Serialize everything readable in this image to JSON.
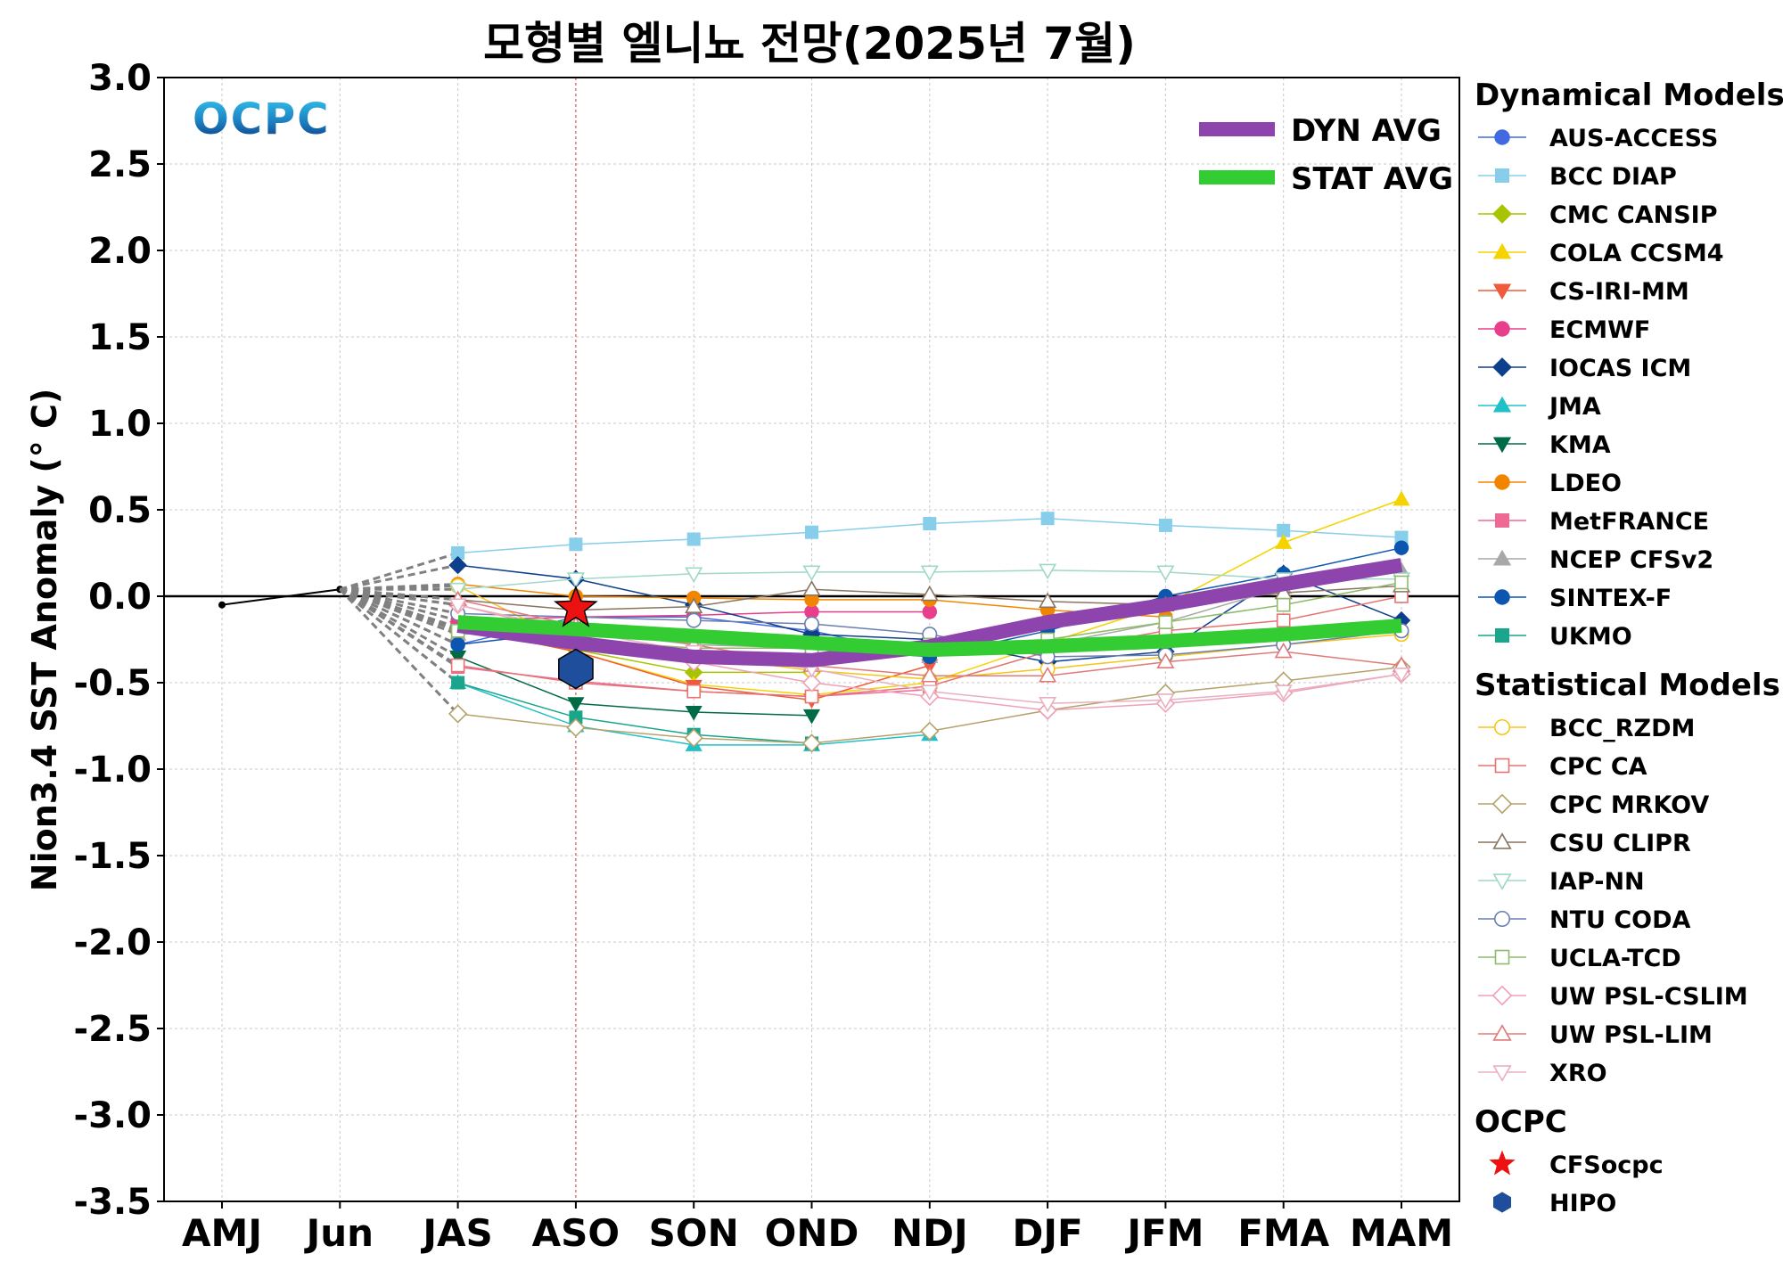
{
  "chart_data": {
    "type": "line",
    "title": "모형별 엘니뇨 전망(2025년 7월)",
    "ylabel": "Nion3.4 SST Anomaly (° C)",
    "xlabel": "",
    "categories": [
      "AMJ",
      "Jun",
      "JAS",
      "ASO",
      "SON",
      "OND",
      "NDJ",
      "DJF",
      "JFM",
      "FMA",
      "MAM"
    ],
    "ylim": [
      -3.5,
      3.0
    ],
    "yticks": [
      "3.0",
      "2.5",
      "2.0",
      "1.5",
      "1.0",
      "0.5",
      "0.0",
      "-0.5",
      "-1.0",
      "-1.5",
      "-2.0",
      "-2.5",
      "-3.0",
      "-3.5"
    ],
    "grid": true,
    "logo_text": "OCPC",
    "observed": {
      "values": [
        -0.05,
        0.04,
        null,
        null,
        null,
        null,
        null,
        null,
        null,
        null,
        null
      ],
      "color": "#000000"
    },
    "vline_category": "ASO",
    "averages": [
      {
        "name": "DYN AVG",
        "color": "#8e44ad",
        "values": [
          null,
          null,
          -0.17,
          -0.27,
          -0.35,
          -0.37,
          -0.29,
          -0.15,
          -0.05,
          0.07,
          0.18
        ]
      },
      {
        "name": "STAT AVG",
        "color": "#33cc33",
        "values": [
          null,
          null,
          -0.15,
          -0.19,
          -0.23,
          -0.27,
          -0.31,
          -0.29,
          -0.26,
          -0.22,
          -0.17
        ]
      }
    ],
    "legend_groups": [
      {
        "heading": "Dynamical Models",
        "series": [
          {
            "name": "AUS-ACCESS",
            "color": "#4169e1",
            "marker": "circle",
            "filled": true,
            "values": [
              null,
              null,
              -0.28,
              -0.12,
              -0.12,
              -0.2,
              -0.35,
              null,
              null,
              null,
              null
            ]
          },
          {
            "name": "BCC DIAP",
            "color": "#87ceeb",
            "marker": "square",
            "filled": true,
            "values": [
              null,
              null,
              0.25,
              0.3,
              0.33,
              0.37,
              0.42,
              0.45,
              0.41,
              0.38,
              0.34
            ]
          },
          {
            "name": "CMC CANSIP",
            "color": "#a8c400",
            "marker": "diamond",
            "filled": true,
            "values": [
              null,
              null,
              -0.19,
              -0.31,
              -0.44,
              -0.44,
              null,
              null,
              null,
              null,
              null
            ]
          },
          {
            "name": "COLA CCSM4",
            "color": "#f5d300",
            "marker": "triangle-up",
            "filled": true,
            "values": [
              null,
              null,
              -0.18,
              -0.32,
              -0.51,
              -0.57,
              -0.5,
              -0.27,
              -0.05,
              0.31,
              0.56
            ]
          },
          {
            "name": "CS-IRI-MM",
            "color": "#f05a3c",
            "marker": "triangle-down",
            "filled": true,
            "values": [
              null,
              null,
              -0.18,
              -0.32,
              -0.52,
              -0.6,
              -0.4,
              null,
              null,
              null,
              null
            ]
          },
          {
            "name": "ECMWF",
            "color": "#e83e8c",
            "marker": "circle",
            "filled": true,
            "values": [
              null,
              null,
              -0.14,
              -0.12,
              -0.11,
              -0.09,
              -0.09,
              null,
              null,
              null,
              null
            ]
          },
          {
            "name": "IOCAS ICM",
            "color": "#0d3f8c",
            "marker": "diamond",
            "filled": true,
            "values": [
              null,
              null,
              0.18,
              0.1,
              -0.05,
              -0.22,
              -0.25,
              -0.38,
              -0.32,
              0.13,
              -0.14
            ]
          },
          {
            "name": "JMA",
            "color": "#20c0c8",
            "marker": "triangle-up",
            "filled": true,
            "values": [
              null,
              null,
              -0.5,
              -0.75,
              -0.86,
              -0.86,
              -0.8,
              null,
              null,
              null,
              null
            ]
          },
          {
            "name": "KMA",
            "color": "#006b45",
            "marker": "triangle-down",
            "filled": true,
            "values": [
              null,
              null,
              -0.35,
              -0.62,
              -0.67,
              -0.69,
              null,
              null,
              null,
              null,
              null
            ]
          },
          {
            "name": "LDEO",
            "color": "#f28500",
            "marker": "circle",
            "filled": true,
            "values": [
              null,
              null,
              0.07,
              0.0,
              -0.01,
              -0.02,
              -0.02,
              -0.08,
              -0.12,
              null,
              null
            ]
          },
          {
            "name": "MetFRANCE",
            "color": "#ee6a95",
            "marker": "square",
            "filled": true,
            "values": [
              null,
              null,
              -0.41,
              -0.49,
              -0.55,
              -0.58,
              -0.54,
              null,
              null,
              null,
              null
            ]
          },
          {
            "name": "NCEP CFSv2",
            "color": "#a8a8a8",
            "marker": "triangle-up",
            "filled": true,
            "values": [
              null,
              null,
              -0.22,
              -0.2,
              -0.28,
              -0.3,
              -0.35,
              -0.28,
              -0.15,
              0.05,
              0.15
            ]
          },
          {
            "name": "SINTEX-F",
            "color": "#0d56b0",
            "marker": "circle",
            "filled": true,
            "values": [
              null,
              null,
              -0.28,
              -0.2,
              -0.25,
              -0.3,
              -0.35,
              -0.2,
              0.0,
              0.13,
              0.28
            ]
          },
          {
            "name": "UKMO",
            "color": "#1aa68c",
            "marker": "square",
            "filled": true,
            "values": [
              null,
              null,
              -0.5,
              -0.7,
              -0.8,
              -0.85,
              null,
              null,
              null,
              null,
              null
            ]
          }
        ]
      },
      {
        "heading": "Statistical Models",
        "series": [
          {
            "name": "BCC_RZDM",
            "color": "#f5c518",
            "marker": "circle",
            "filled": false,
            "values": [
              null,
              null,
              0.06,
              -0.28,
              -0.34,
              -0.43,
              -0.48,
              -0.42,
              -0.35,
              -0.28,
              -0.22
            ]
          },
          {
            "name": "CPC CA",
            "color": "#e57373",
            "marker": "square",
            "filled": false,
            "values": [
              null,
              null,
              -0.4,
              -0.5,
              -0.55,
              -0.58,
              -0.52,
              -0.32,
              -0.2,
              -0.14,
              0.0
            ]
          },
          {
            "name": "CPC MRKOV",
            "color": "#b5a26a",
            "marker": "diamond",
            "filled": false,
            "values": [
              null,
              null,
              -0.68,
              -0.76,
              -0.82,
              -0.85,
              -0.78,
              -0.66,
              -0.56,
              -0.49,
              -0.41
            ]
          },
          {
            "name": "CSU CLIPR",
            "color": "#8a7560",
            "marker": "triangle-up",
            "filled": false,
            "values": [
              null,
              null,
              -0.02,
              -0.08,
              -0.06,
              0.04,
              0.01,
              -0.03,
              -0.05,
              0.02,
              0.06
            ]
          },
          {
            "name": "IAP-NN",
            "color": "#9fd8c8",
            "marker": "triangle-down",
            "filled": false,
            "values": [
              null,
              null,
              0.04,
              0.1,
              0.13,
              0.14,
              0.14,
              0.15,
              0.14,
              0.1,
              0.1
            ]
          },
          {
            "name": "NTU CODA",
            "color": "#6a7fb0",
            "marker": "circle",
            "filled": false,
            "values": [
              null,
              null,
              -0.1,
              -0.12,
              -0.14,
              -0.16,
              -0.22,
              -0.35,
              -0.34,
              -0.28,
              -0.2
            ]
          },
          {
            "name": "UCLA-TCD",
            "color": "#8fba6a",
            "marker": "square",
            "filled": false,
            "values": [
              null,
              null,
              -0.2,
              -0.25,
              -0.3,
              -0.3,
              -0.28,
              -0.25,
              -0.15,
              -0.05,
              0.08
            ]
          },
          {
            "name": "UW PSL-CSLIM",
            "color": "#f0a0b8",
            "marker": "diamond",
            "filled": false,
            "values": [
              null,
              null,
              -0.05,
              -0.22,
              -0.38,
              -0.5,
              -0.58,
              -0.66,
              -0.62,
              -0.56,
              -0.45
            ]
          },
          {
            "name": "UW PSL-LIM",
            "color": "#e07a7a",
            "marker": "triangle-up",
            "filled": false,
            "values": [
              null,
              null,
              -0.02,
              -0.17,
              -0.28,
              -0.4,
              -0.46,
              -0.46,
              -0.38,
              -0.32,
              -0.4
            ]
          },
          {
            "name": "XRO",
            "color": "#e8b0c0",
            "marker": "triangle-down",
            "filled": false,
            "values": [
              null,
              null,
              -0.05,
              -0.2,
              -0.32,
              -0.42,
              -0.55,
              -0.62,
              -0.6,
              -0.55,
              -0.45
            ]
          }
        ]
      },
      {
        "heading": "OCPC",
        "series": [
          {
            "name": "CFSocpc",
            "color": "#ee1111",
            "marker": "star",
            "filled": true,
            "values": [
              null,
              null,
              null,
              -0.07,
              null,
              null,
              null,
              null,
              null,
              null,
              null
            ]
          },
          {
            "name": "HIPO",
            "color": "#1f4e9c",
            "marker": "hexagon",
            "filled": true,
            "values": [
              null,
              null,
              null,
              -0.42,
              null,
              null,
              null,
              null,
              null,
              null,
              null
            ]
          }
        ]
      }
    ]
  }
}
